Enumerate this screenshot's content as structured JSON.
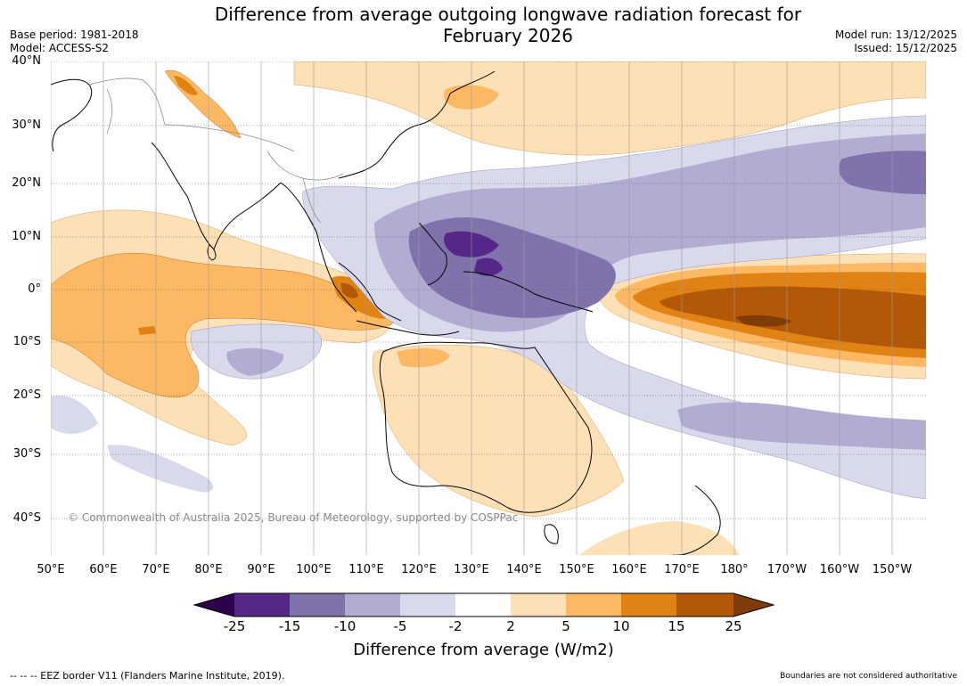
{
  "title_line1": "Difference from average outgoing longwave radiation forecast for",
  "title_line2": "February 2026",
  "base_period": "Base period: 1981-2018",
  "model": "Model: ACCESS-S2",
  "model_run": "Model run: 13/12/2025",
  "issued": "Issued: 15/12/2025",
  "lat_labels": [
    "40°N",
    "30°N",
    "20°N",
    "10°N",
    "0°",
    "10°S",
    "20°S",
    "30°S",
    "40°S"
  ],
  "lon_labels": [
    "50°E",
    "60°E",
    "70°E",
    "80°E",
    "90°E",
    "100°E",
    "110°E",
    "120°E",
    "130°E",
    "140°E",
    "150°E",
    "160°E",
    "170°E",
    "180°",
    "170°W",
    "160°W",
    "150°W"
  ],
  "copyright": "© Commonwealth of Australia 2025, Bureau of Meteorology, supported by COSPPac",
  "colorbar": {
    "ticks": [
      "-25",
      "-15",
      "-10",
      "-5",
      "-2",
      "2",
      "5",
      "10",
      "15",
      "25"
    ],
    "colors": [
      "#2d004b",
      "#542788",
      "#8073ac",
      "#b2abd2",
      "#d8daeb",
      "#ffffff",
      "#fee0b6",
      "#fdb863",
      "#e08214",
      "#b35806",
      "#7f3b08"
    ],
    "label": "Difference from average (W/m2)"
  },
  "footer_left": "-- -- -- EEZ border V11 (Flanders Marine Institute, 2019).",
  "footer_right": "Boundaries are not considered authoritative"
}
